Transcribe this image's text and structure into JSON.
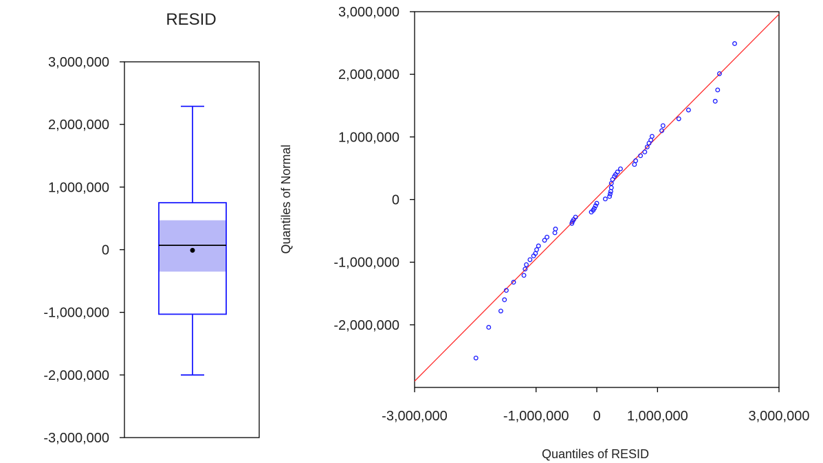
{
  "colors": {
    "box": "#1a1aff",
    "box_fill_ci": "#b8b8f8",
    "points": "#1a1aff",
    "reference_line": "#ff2a2a",
    "frame": "#000000"
  },
  "chart_data": [
    {
      "type": "boxplot",
      "title": "RESID",
      "ylabel": "",
      "ylim": [
        -3000000,
        3000000
      ],
      "yticks": [
        -3000000,
        -2000000,
        -1000000,
        0,
        1000000,
        2000000,
        3000000
      ],
      "ytick_labels": [
        "-3,000,000",
        "-2,000,000",
        "-1,000,000",
        "0",
        "1,000,000",
        "2,000,000",
        "3,000,000"
      ],
      "whisker_low": -2000000,
      "q1": -1030000,
      "median": 70000,
      "q3": 750000,
      "whisker_high": 2290000,
      "mean": -10000,
      "median_ci": [
        -350000,
        470000
      ]
    },
    {
      "type": "scatter",
      "title": "",
      "xlabel": "Quantiles of RESID",
      "ylabel": "Quantiles of Normal",
      "xlim": [
        -3000000,
        3000000
      ],
      "ylim": [
        -3000000,
        3000000
      ],
      "xticks": [
        -3000000,
        -1000000,
        0,
        1000000,
        3000000
      ],
      "xtick_labels": [
        "-3,000,000",
        "-1,000,000",
        "0",
        "1,000,000",
        "3,000,000"
      ],
      "yticks": [
        -2000000,
        -1000000,
        0,
        1000000,
        2000000,
        3000000
      ],
      "ytick_labels": [
        "-2,000,000",
        "-1,000,000",
        "0",
        "1,000,000",
        "2,000,000",
        "3,000,000"
      ],
      "reference_line": {
        "from": [
          -3000000,
          -2900000
        ],
        "to": [
          3000000,
          2960000
        ]
      },
      "points": [
        {
          "x": -1990000,
          "y": -2530000
        },
        {
          "x": -1780000,
          "y": -2040000
        },
        {
          "x": -1580000,
          "y": -1780000
        },
        {
          "x": -1520000,
          "y": -1600000
        },
        {
          "x": -1490000,
          "y": -1450000
        },
        {
          "x": -1370000,
          "y": -1320000
        },
        {
          "x": -1200000,
          "y": -1210000
        },
        {
          "x": -1180000,
          "y": -1110000
        },
        {
          "x": -1160000,
          "y": -1040000
        },
        {
          "x": -1100000,
          "y": -960000
        },
        {
          "x": -1040000,
          "y": -900000
        },
        {
          "x": -1010000,
          "y": -860000
        },
        {
          "x": -990000,
          "y": -800000
        },
        {
          "x": -960000,
          "y": -740000
        },
        {
          "x": -860000,
          "y": -650000
        },
        {
          "x": -820000,
          "y": -600000
        },
        {
          "x": -690000,
          "y": -530000
        },
        {
          "x": -680000,
          "y": -470000
        },
        {
          "x": -410000,
          "y": -380000
        },
        {
          "x": -400000,
          "y": -350000
        },
        {
          "x": -380000,
          "y": -320000
        },
        {
          "x": -350000,
          "y": -280000
        },
        {
          "x": -90000,
          "y": -200000
        },
        {
          "x": -60000,
          "y": -170000
        },
        {
          "x": -40000,
          "y": -140000
        },
        {
          "x": -20000,
          "y": -100000
        },
        {
          "x": 0,
          "y": -60000
        },
        {
          "x": 140000,
          "y": 10000
        },
        {
          "x": 210000,
          "y": 50000
        },
        {
          "x": 220000,
          "y": 90000
        },
        {
          "x": 230000,
          "y": 130000
        },
        {
          "x": 240000,
          "y": 190000
        },
        {
          "x": 240000,
          "y": 260000
        },
        {
          "x": 260000,
          "y": 320000
        },
        {
          "x": 290000,
          "y": 370000
        },
        {
          "x": 310000,
          "y": 400000
        },
        {
          "x": 340000,
          "y": 440000
        },
        {
          "x": 390000,
          "y": 490000
        },
        {
          "x": 620000,
          "y": 560000
        },
        {
          "x": 640000,
          "y": 620000
        },
        {
          "x": 720000,
          "y": 700000
        },
        {
          "x": 790000,
          "y": 760000
        },
        {
          "x": 830000,
          "y": 840000
        },
        {
          "x": 860000,
          "y": 900000
        },
        {
          "x": 890000,
          "y": 950000
        },
        {
          "x": 910000,
          "y": 1010000
        },
        {
          "x": 1070000,
          "y": 1100000
        },
        {
          "x": 1090000,
          "y": 1180000
        },
        {
          "x": 1350000,
          "y": 1290000
        },
        {
          "x": 1510000,
          "y": 1430000
        },
        {
          "x": 1950000,
          "y": 1570000
        },
        {
          "x": 1990000,
          "y": 1750000
        },
        {
          "x": 2020000,
          "y": 2010000
        },
        {
          "x": 2270000,
          "y": 2490000
        }
      ]
    }
  ]
}
